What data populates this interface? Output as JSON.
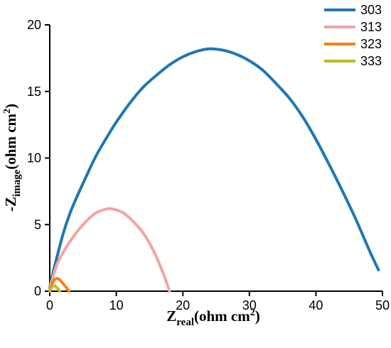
{
  "chart_data": {
    "type": "line",
    "xlabel": {
      "main": "Z",
      "sub": "real",
      "unit_pre": "(ohm cm",
      "sup": "2",
      "unit_post": ")"
    },
    "ylabel": {
      "main": "-Z",
      "sub": "image",
      "unit_pre": "(ohm cm",
      "sup": "2",
      "unit_post": ")"
    },
    "xlim": [
      0,
      50
    ],
    "ylim": [
      0,
      20
    ],
    "xticks": [
      0,
      10,
      20,
      30,
      40,
      50
    ],
    "yticks": [
      0,
      5,
      10,
      15,
      20
    ],
    "grid": false,
    "legend_position": "top-right",
    "series": [
      {
        "name": "303",
        "color": "#1f77b4",
        "x": [
          0,
          0.5,
          1,
          2,
          3,
          4,
          5,
          7,
          9,
          10,
          12,
          14,
          16,
          18,
          20,
          22,
          24,
          26,
          28,
          30,
          32,
          34,
          36,
          38,
          40,
          42,
          44,
          46,
          48,
          49.4
        ],
        "y": [
          0.3,
          1.4,
          2.4,
          4.3,
          5.8,
          7.0,
          8.1,
          10.2,
          11.9,
          12.7,
          14.1,
          15.3,
          16.2,
          17.0,
          17.6,
          18.0,
          18.2,
          18.1,
          17.8,
          17.3,
          16.6,
          15.6,
          14.5,
          13.1,
          11.4,
          9.5,
          7.5,
          5.4,
          3.1,
          1.6
        ]
      },
      {
        "name": "313",
        "color": "#f4a3a3",
        "x": [
          0,
          1,
          2,
          3,
          4,
          5,
          6,
          7,
          8,
          9,
          10,
          11,
          12,
          13,
          14,
          15,
          16,
          17,
          17.6,
          18
        ],
        "y": [
          0.2,
          1.9,
          2.9,
          3.7,
          4.4,
          5.0,
          5.5,
          5.9,
          6.1,
          6.2,
          6.1,
          5.9,
          5.5,
          5.0,
          4.4,
          3.6,
          2.6,
          1.4,
          0.6,
          0
        ]
      },
      {
        "name": "323",
        "color": "#ff7f0e",
        "x": [
          0,
          0.3,
          0.6,
          1,
          1.4,
          1.8,
          2.2,
          2.6,
          2.9
        ],
        "y": [
          0.1,
          0.5,
          0.8,
          0.95,
          0.9,
          0.7,
          0.45,
          0.2,
          0
        ]
      },
      {
        "name": "333",
        "color": "#bcbd22",
        "x": [
          0,
          0.2,
          0.4,
          0.7,
          1.0,
          1.3,
          1.5
        ],
        "y": [
          0,
          0.2,
          0.35,
          0.4,
          0.3,
          0.15,
          0
        ]
      }
    ]
  }
}
